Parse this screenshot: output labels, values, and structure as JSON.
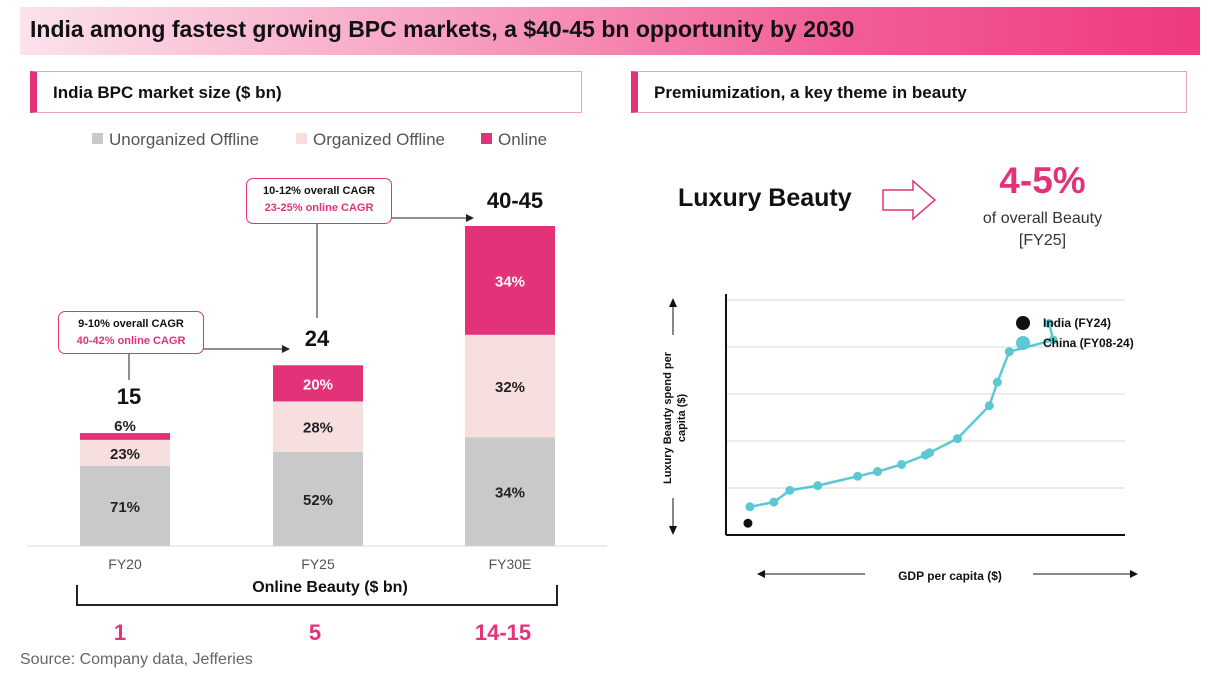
{
  "header": {
    "title": "India among fastest growing BPC markets, a $40-45 bn opportunity by 2030"
  },
  "source": "Source: Company data, Jefferies",
  "colors": {
    "accent": "#e2337a",
    "unorganized": "#c9c9c9",
    "organized": "#f7dfe0",
    "online": "#e2337a",
    "china": "#5bc8d4",
    "india": "#111111"
  },
  "chart_data": [
    {
      "type": "bar",
      "title": "India BPC market size ($ bn)",
      "categories": [
        "FY20",
        "FY25",
        "FY30E"
      ],
      "totals": [
        "15",
        "24",
        "40-45"
      ],
      "total_values": [
        15,
        24,
        42.5
      ],
      "series": [
        {
          "name": "Unorganized Offline",
          "values": [
            71,
            52,
            34
          ],
          "labels": [
            "71%",
            "52%",
            "34%"
          ]
        },
        {
          "name": "Organized Offline",
          "values": [
            23,
            28,
            32
          ],
          "labels": [
            "23%",
            "28%",
            "32%"
          ]
        },
        {
          "name": "Online",
          "values": [
            6,
            20,
            34
          ],
          "labels": [
            "6%",
            "20%",
            "34%"
          ]
        }
      ],
      "legend_position": "top",
      "annotations": [
        {
          "overall": "9-10%  overall CAGR",
          "online": "40-42% online CAGR"
        },
        {
          "overall": "10-12%  overall CAGR",
          "online": "23-25% online CAGR"
        }
      ],
      "online_beauty": {
        "label": "Online Beauty ($ bn)",
        "values": [
          "1",
          "5",
          "14-15"
        ]
      }
    },
    {
      "type": "scatter",
      "title": "Premiumization, a key theme in beauty",
      "xlabel": "GDP per capita ($)",
      "ylabel": "Luxury Beauty spend per capita ($)",
      "grid": true,
      "legend_position": "top-right",
      "series": [
        {
          "name": "India (FY24)",
          "points": [
            [
              0.6,
              0.5
            ]
          ]
        },
        {
          "name": "China (FY08-24)",
          "points": [
            [
              0.6,
              1.2
            ],
            [
              1.2,
              1.4
            ],
            [
              1.6,
              1.9
            ],
            [
              2.3,
              2.1
            ],
            [
              3.3,
              2.5
            ],
            [
              3.8,
              2.7
            ],
            [
              4.4,
              3.0
            ],
            [
              5.0,
              3.4
            ],
            [
              5.1,
              3.5
            ],
            [
              5.8,
              4.1
            ],
            [
              6.6,
              5.5
            ],
            [
              6.8,
              6.5
            ],
            [
              7.1,
              7.8
            ],
            [
              8.2,
              8.3
            ],
            [
              8.1,
              9.0
            ]
          ],
          "connected": true
        }
      ],
      "luxury": {
        "label": "Luxury Beauty",
        "share": "4-5%",
        "note": "of overall Beauty",
        "period": "[FY25]"
      }
    }
  ]
}
